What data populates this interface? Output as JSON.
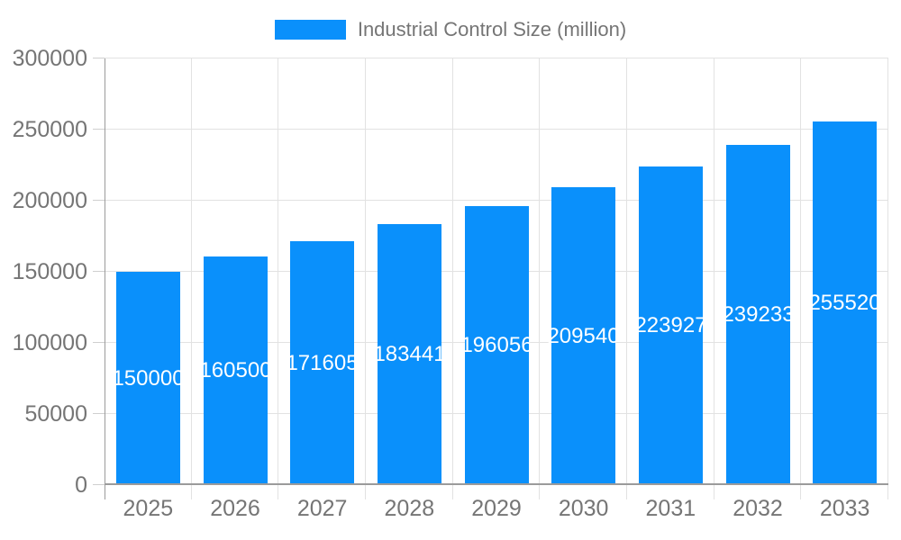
{
  "legend": {
    "label": "Industrial Control Size (million)"
  },
  "colors": {
    "bar": "#0a90fb",
    "bar_label_text": "#ffffff",
    "axis_text": "#757575",
    "grid_line": "#e2e2e2",
    "axis_line": "#9b9b9b",
    "tick_mark": "#cfcfcf",
    "background": "#ffffff"
  },
  "chart_data": {
    "type": "bar",
    "title": "Industrial Control Size (million)",
    "series_name": "Industrial Control Size (million)",
    "categories": [
      "2025",
      "2026",
      "2027",
      "2028",
      "2029",
      "2030",
      "2031",
      "2032",
      "2033"
    ],
    "values": [
      150000,
      160500,
      171605,
      183441,
      196056,
      209540,
      223927,
      239233,
      255520
    ],
    "data_labels": [
      "150000",
      "160500",
      "171605",
      "183441",
      "196056",
      "209540",
      "223927",
      "239233",
      "255520"
    ],
    "data_labels_position": "inside-center",
    "xlabel": "",
    "ylabel": "",
    "ylim": [
      0,
      300000
    ],
    "y_ticks": [
      0,
      50000,
      100000,
      150000,
      200000,
      250000,
      300000
    ],
    "grid": "horizontal and vertical light gray lines",
    "legend_position": "top-center"
  }
}
